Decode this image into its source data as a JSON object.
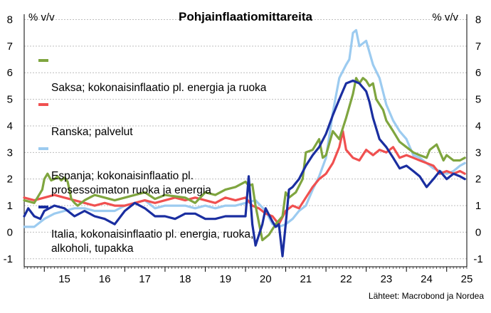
{
  "chart_data": {
    "type": "line",
    "title": "Pohjainflaatiomittareita",
    "ylabel_left": "% v/v",
    "ylabel_right": "% v/v",
    "ylim": [
      -1.3,
      8.2
    ],
    "y_ticks": [
      -1,
      0,
      1,
      2,
      3,
      4,
      5,
      6,
      7,
      8
    ],
    "x_tick_labels": [
      "15",
      "16",
      "17",
      "18",
      "19",
      "20",
      "21",
      "22",
      "23",
      "24",
      "25"
    ],
    "x_tick_years": [
      2015,
      2016,
      2017,
      2018,
      2019,
      2020,
      2021,
      2022,
      2023,
      2024,
      2025
    ],
    "xlim": [
      2014.5,
      2025.5
    ],
    "grid": "horizontal",
    "legend_position": "top-left",
    "source": "Lähteet: Macrobond ja Nordea",
    "series": [
      {
        "name": "Saksa; kokonaisinflaatio pl. energia ja ruoka",
        "color": "#7fa53f",
        "x": [
          2014.5,
          2014.75,
          2014.95,
          2015.0,
          2015.08,
          2015.17,
          2015.25,
          2015.33,
          2015.42,
          2015.5,
          2015.58,
          2015.67,
          2015.75,
          2015.83,
          2016.0,
          2016.25,
          2016.5,
          2016.75,
          2017.0,
          2017.25,
          2017.5,
          2017.75,
          2018.0,
          2018.25,
          2018.5,
          2018.75,
          2019.0,
          2019.25,
          2019.5,
          2019.75,
          2020.0,
          2020.08,
          2020.17,
          2020.25,
          2020.42,
          2020.5,
          2020.58,
          2020.75,
          2020.92,
          2021.0,
          2021.08,
          2021.25,
          2021.42,
          2021.5,
          2021.67,
          2021.83,
          2021.92,
          2022.0,
          2022.17,
          2022.33,
          2022.5,
          2022.67,
          2022.75,
          2022.83,
          2022.92,
          2023.0,
          2023.08,
          2023.17,
          2023.25,
          2023.42,
          2023.5,
          2023.67,
          2023.83,
          2024.0,
          2024.17,
          2024.33,
          2024.5,
          2024.58,
          2024.75,
          2024.92,
          2025.0,
          2025.17,
          2025.33,
          2025.45
        ],
        "values": [
          1.2,
          1.1,
          1.6,
          2.0,
          2.2,
          1.95,
          2.0,
          2.1,
          1.95,
          2.05,
          1.9,
          1.25,
          1.1,
          1.0,
          1.2,
          1.4,
          1.3,
          1.2,
          1.3,
          1.4,
          1.5,
          1.25,
          1.4,
          1.35,
          1.3,
          1.1,
          1.5,
          1.4,
          1.6,
          1.7,
          1.9,
          1.75,
          1.8,
          1.0,
          -0.3,
          -0.2,
          -0.1,
          0.3,
          0.6,
          1.5,
          1.3,
          1.5,
          2.0,
          3.0,
          3.1,
          3.5,
          2.8,
          2.9,
          3.8,
          3.5,
          4.3,
          5.2,
          5.8,
          5.6,
          5.8,
          5.7,
          5.5,
          5.6,
          5.0,
          4.6,
          4.2,
          3.8,
          3.4,
          3.2,
          3.0,
          2.9,
          2.8,
          3.1,
          3.3,
          2.7,
          2.9,
          2.7,
          2.7,
          2.8
        ]
      },
      {
        "name": "Ranska; palvelut",
        "color": "#f05050",
        "x": [
          2014.5,
          2014.75,
          2015.0,
          2015.25,
          2015.5,
          2015.75,
          2016.0,
          2016.25,
          2016.5,
          2016.75,
          2017.0,
          2017.25,
          2017.5,
          2017.75,
          2018.0,
          2018.25,
          2018.5,
          2018.75,
          2019.0,
          2019.25,
          2019.5,
          2019.75,
          2020.0,
          2020.17,
          2020.33,
          2020.5,
          2020.67,
          2020.83,
          2021.0,
          2021.17,
          2021.33,
          2021.5,
          2021.67,
          2021.83,
          2022.0,
          2022.17,
          2022.33,
          2022.42,
          2022.5,
          2022.67,
          2022.83,
          2023.0,
          2023.17,
          2023.33,
          2023.5,
          2023.67,
          2023.83,
          2024.0,
          2024.17,
          2024.33,
          2024.5,
          2024.67,
          2024.83,
          2025.0,
          2025.17,
          2025.33,
          2025.45
        ],
        "values": [
          1.3,
          1.2,
          1.3,
          1.4,
          1.3,
          1.2,
          1.1,
          1.0,
          1.1,
          1.0,
          1.0,
          1.1,
          1.2,
          1.1,
          1.2,
          1.3,
          1.2,
          1.3,
          1.2,
          1.1,
          1.3,
          1.2,
          1.3,
          1.0,
          0.9,
          0.7,
          0.6,
          0.3,
          0.8,
          1.0,
          0.9,
          1.3,
          1.7,
          2.0,
          2.2,
          2.6,
          3.2,
          3.8,
          3.1,
          2.8,
          2.7,
          3.1,
          2.9,
          3.1,
          3.0,
          3.2,
          2.8,
          2.9,
          2.8,
          2.7,
          2.6,
          2.5,
          2.2,
          2.3,
          2.2,
          2.3,
          2.2
        ]
      },
      {
        "name": "Espanja; kokonaisinflaatio pl.\nprosessoimaton ruoka ja energia",
        "color": "#9ccbf0",
        "x": [
          2014.5,
          2014.75,
          2015.0,
          2015.25,
          2015.5,
          2015.75,
          2016.0,
          2016.25,
          2016.5,
          2016.75,
          2017.0,
          2017.25,
          2017.5,
          2017.75,
          2018.0,
          2018.25,
          2018.5,
          2018.75,
          2019.0,
          2019.25,
          2019.5,
          2019.75,
          2020.0,
          2020.25,
          2020.5,
          2020.67,
          2020.83,
          2021.0,
          2021.17,
          2021.33,
          2021.5,
          2021.67,
          2021.83,
          2022.0,
          2022.17,
          2022.33,
          2022.5,
          2022.58,
          2022.67,
          2022.75,
          2022.83,
          2023.0,
          2023.17,
          2023.33,
          2023.5,
          2023.67,
          2023.83,
          2024.0,
          2024.17,
          2024.33,
          2024.5,
          2024.67,
          2024.83,
          2025.0,
          2025.17,
          2025.33,
          2025.45
        ],
        "values": [
          0.2,
          0.2,
          0.5,
          0.7,
          0.8,
          0.9,
          0.9,
          0.8,
          0.8,
          0.8,
          1.0,
          1.1,
          1.2,
          0.9,
          1.0,
          1.0,
          1.0,
          0.9,
          1.0,
          0.9,
          1.0,
          1.0,
          1.1,
          1.2,
          0.8,
          0.3,
          0.2,
          0.3,
          0.5,
          0.8,
          1.0,
          1.6,
          2.1,
          2.8,
          4.5,
          5.8,
          6.3,
          6.5,
          7.5,
          7.6,
          7.0,
          7.2,
          6.3,
          5.8,
          4.8,
          4.2,
          3.8,
          3.5,
          2.9,
          2.8,
          2.6,
          2.4,
          2.3,
          2.2,
          2.3,
          2.5,
          2.6
        ]
      },
      {
        "name": "Italia, kokonaisinflaatio pl. energia, ruoka,\nalkoholi, tupakka",
        "color": "#1a2ea0",
        "x": [
          2014.5,
          2014.6,
          2014.75,
          2014.9,
          2015.0,
          2015.25,
          2015.5,
          2015.75,
          2016.0,
          2016.25,
          2016.5,
          2016.75,
          2017.0,
          2017.25,
          2017.5,
          2017.75,
          2018.0,
          2018.25,
          2018.5,
          2018.75,
          2019.0,
          2019.25,
          2019.5,
          2019.75,
          2020.0,
          2020.08,
          2020.17,
          2020.25,
          2020.42,
          2020.5,
          2020.67,
          2020.75,
          2020.83,
          2020.92,
          2021.0,
          2021.08,
          2021.17,
          2021.33,
          2021.5,
          2021.67,
          2021.83,
          2022.0,
          2022.17,
          2022.33,
          2022.5,
          2022.67,
          2022.83,
          2023.0,
          2023.08,
          2023.17,
          2023.33,
          2023.5,
          2023.67,
          2023.83,
          2024.0,
          2024.17,
          2024.33,
          2024.5,
          2024.67,
          2024.83,
          2025.0,
          2025.17,
          2025.33,
          2025.45
        ],
        "values": [
          0.6,
          0.9,
          0.6,
          0.5,
          0.8,
          1.0,
          0.9,
          0.6,
          0.8,
          0.6,
          0.5,
          0.3,
          0.8,
          1.1,
          0.9,
          0.6,
          0.6,
          0.5,
          0.7,
          0.7,
          0.5,
          0.5,
          0.6,
          0.6,
          0.6,
          2.1,
          0.3,
          -0.5,
          0.3,
          0.9,
          0.4,
          0.2,
          0.3,
          -0.9,
          0.3,
          1.6,
          1.7,
          2.0,
          2.5,
          2.9,
          3.2,
          3.7,
          4.4,
          5.0,
          5.6,
          5.7,
          5.6,
          5.3,
          4.9,
          4.3,
          3.5,
          3.2,
          2.8,
          2.4,
          2.5,
          2.3,
          2.1,
          1.7,
          2.0,
          2.3,
          2.0,
          2.2,
          2.1,
          2.0
        ]
      }
    ]
  }
}
